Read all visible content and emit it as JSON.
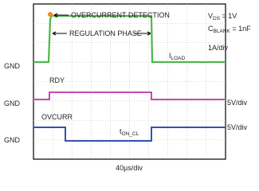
{
  "conditions": {
    "vds": {
      "symbol": "V",
      "sub": "DS",
      "value": " = 1V"
    },
    "cblank": {
      "symbol": "C",
      "sub": "BLANK",
      "value": " = 1nF"
    }
  },
  "traces": [
    {
      "name": "I",
      "sub": "LOAD",
      "scale": "1A/div",
      "ground": "GND"
    },
    {
      "name": "RDY",
      "scale": "5V/div",
      "ground": "GND"
    },
    {
      "name": "OVCURR",
      "scale": "5V/div",
      "ground": "GND"
    }
  ],
  "annotations": {
    "overcurrent": "OVERCURRENT DETECTION",
    "regulation": "REGULATION PHASE",
    "ion": {
      "symbol": "t",
      "sub": "ON_CL"
    }
  },
  "timebase": "40µs/div"
}
